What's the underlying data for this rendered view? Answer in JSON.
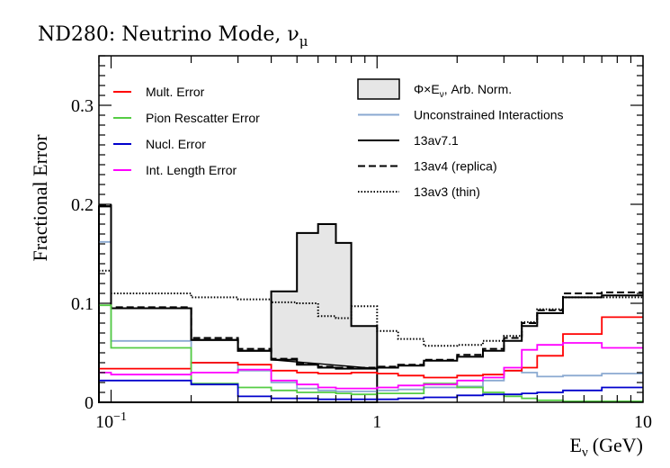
{
  "chart_data": {
    "type": "line",
    "title": "ND280: Neutrino Mode, ν",
    "title_subscript": "μ",
    "xlabel": "E",
    "xlabel_subscript": "ν",
    "xlabel_unit": "(GeV)",
    "ylabel": "Fractional Error",
    "x_scale": "log",
    "xlim": [
      0.09,
      10
    ],
    "ylim": [
      0,
      0.35
    ],
    "x_ticks": [
      {
        "value": 0.1,
        "label": "10",
        "sup": "−1"
      },
      {
        "value": 1,
        "label": "1"
      },
      {
        "value": 10,
        "label": "10"
      }
    ],
    "y_ticks": [
      {
        "value": 0,
        "label": "0"
      },
      {
        "value": 0.1,
        "label": "0.1"
      },
      {
        "value": 0.2,
        "label": "0.2"
      },
      {
        "value": 0.3,
        "label": "0.3"
      }
    ],
    "bin_edges": [
      0.09,
      0.1,
      0.2,
      0.3,
      0.4,
      0.5,
      0.6,
      0.7,
      0.8,
      1.0,
      1.2,
      1.5,
      2.0,
      2.5,
      3.0,
      3.5,
      4.0,
      5.0,
      7.0,
      10.0
    ],
    "series": [
      {
        "name": "Φ×E",
        "name_subscript": "ν",
        "name_suffix": ", Arb. Norm.",
        "style": "flux",
        "color": "#000000",
        "fill": "#e6e6e6",
        "values": [
          0.198,
          0.095,
          0.063,
          0.052,
          0.112,
          0.171,
          0.18,
          0.161,
          0.077,
          null,
          null,
          null,
          null,
          null,
          null,
          null,
          null,
          null,
          null
        ]
      },
      {
        "name": "Unconstrained Interactions",
        "style": "solid",
        "color": "#8aa9d1",
        "values": [
          0.162,
          0.062,
          0.04,
          0.032,
          0.02,
          0.014,
          0.012,
          0.011,
          0.011,
          0.012,
          0.013,
          0.015,
          0.016,
          0.022,
          0.032,
          0.03,
          0.026,
          0.027,
          0.029
        ]
      },
      {
        "name": "13av7.1",
        "style": "solid",
        "color": "#000000",
        "values": [
          0.198,
          0.095,
          0.063,
          0.052,
          0.043,
          0.038,
          0.035,
          0.034,
          0.034,
          0.035,
          0.037,
          0.042,
          0.046,
          0.052,
          0.062,
          0.077,
          0.09,
          0.106,
          0.108
        ]
      },
      {
        "name": "13av4 (replica)",
        "style": "dashed",
        "color": "#000000",
        "values": [
          0.199,
          0.096,
          0.065,
          0.054,
          0.044,
          0.039,
          0.036,
          0.035,
          0.035,
          0.036,
          0.038,
          0.043,
          0.048,
          0.054,
          0.065,
          0.08,
          0.093,
          0.11,
          0.111
        ]
      },
      {
        "name": "13av3 (thin)",
        "style": "dotted",
        "color": "#000000",
        "values": [
          0.133,
          0.11,
          0.106,
          0.104,
          0.101,
          0.1,
          0.087,
          0.085,
          0.097,
          0.072,
          0.064,
          0.057,
          0.058,
          0.062,
          0.067,
          0.081,
          0.094,
          0.106,
          0.106
        ]
      },
      {
        "name": "Mult. Error",
        "style": "solid",
        "color": "#ff0000",
        "values": [
          0.034,
          0.034,
          0.04,
          0.038,
          0.032,
          0.03,
          0.029,
          0.029,
          0.03,
          0.029,
          0.027,
          0.025,
          0.027,
          0.028,
          0.032,
          0.035,
          0.047,
          0.069,
          0.086
        ]
      },
      {
        "name": "Pion Rescatter Error",
        "style": "solid",
        "color": "#55cc44",
        "values": [
          0.098,
          0.055,
          0.019,
          0.015,
          0.012,
          0.01,
          0.01,
          0.009,
          0.008,
          0.009,
          0.009,
          0.019,
          0.015,
          0.01,
          0.006,
          0.004,
          0.002,
          0.001,
          0.001
        ]
      },
      {
        "name": "Nucl. Error",
        "style": "solid",
        "color": "#0000cc",
        "values": [
          0.022,
          0.022,
          0.018,
          0.006,
          0.004,
          0.004,
          0.003,
          0.003,
          0.003,
          0.003,
          0.004,
          0.005,
          0.007,
          0.008,
          0.008,
          0.009,
          0.01,
          0.012,
          0.015
        ]
      },
      {
        "name": "Int. Length Error",
        "style": "solid",
        "color": "#ff00ff",
        "values": [
          0.03,
          0.028,
          0.03,
          0.033,
          0.022,
          0.018,
          0.015,
          0.014,
          0.014,
          0.015,
          0.017,
          0.018,
          0.022,
          0.025,
          0.035,
          0.053,
          0.058,
          0.06,
          0.055
        ]
      }
    ]
  }
}
